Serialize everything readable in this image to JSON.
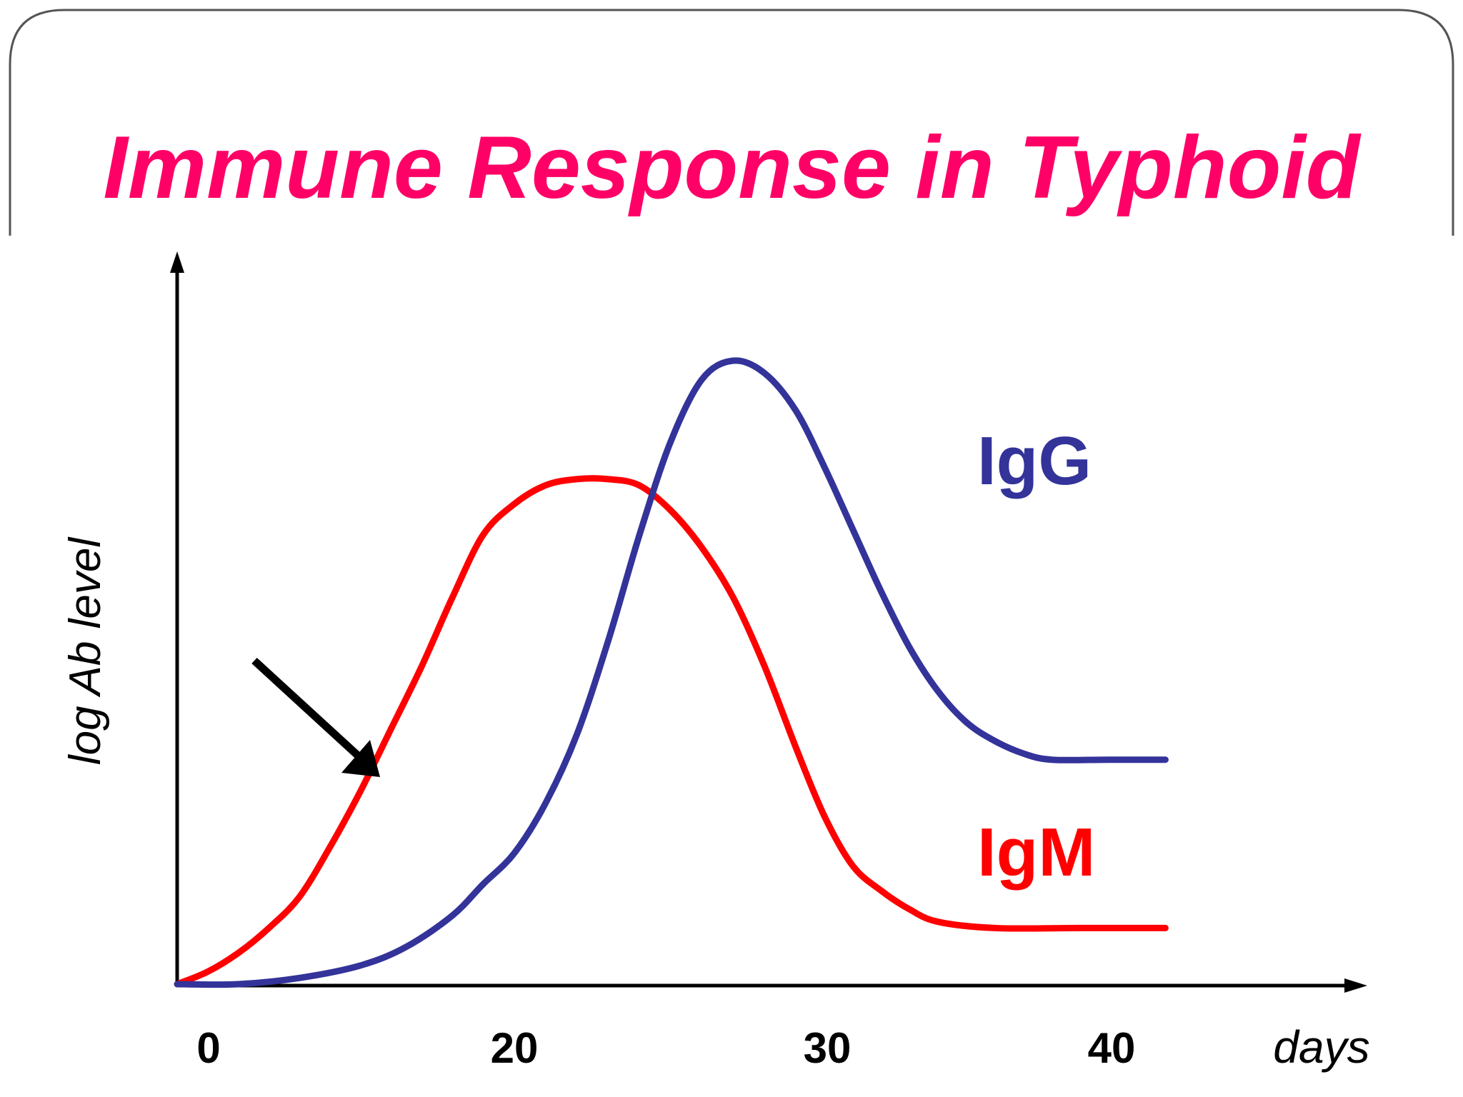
{
  "slide": {
    "title": "Immune Response in Typhoid"
  },
  "colors": {
    "title": "#ff0066",
    "igm": "#ff0000",
    "igg": "#33339a",
    "axis": "#000000"
  },
  "chart_data": {
    "type": "line",
    "title": "",
    "xlabel": "days",
    "ylabel": "log Ab level",
    "x_tick_labels": [
      "0",
      "20",
      "30",
      "40"
    ],
    "grid": false,
    "legend": "inline labels",
    "annotation": "arrow pointing to early IgM rise",
    "series": [
      {
        "name": "IgM",
        "color": "#ff0000",
        "points": [
          [
            0,
            0.0
          ],
          [
            2,
            0.02
          ],
          [
            4,
            0.05
          ],
          [
            6,
            0.09
          ],
          [
            8,
            0.14
          ],
          [
            10,
            0.22
          ],
          [
            12,
            0.31
          ],
          [
            14,
            0.41
          ],
          [
            16,
            0.51
          ],
          [
            18,
            0.62
          ],
          [
            20,
            0.72
          ],
          [
            21,
            0.77
          ],
          [
            22,
            0.8
          ],
          [
            23,
            0.81
          ],
          [
            24,
            0.81
          ],
          [
            25,
            0.8
          ],
          [
            26,
            0.76
          ],
          [
            27,
            0.7
          ],
          [
            28,
            0.62
          ],
          [
            29,
            0.51
          ],
          [
            30,
            0.38
          ],
          [
            31,
            0.27
          ],
          [
            32,
            0.19
          ],
          [
            33,
            0.15
          ],
          [
            34,
            0.12
          ],
          [
            35,
            0.1
          ],
          [
            37,
            0.09
          ],
          [
            40,
            0.09
          ],
          [
            43,
            0.09
          ]
        ]
      },
      {
        "name": "IgG",
        "color": "#33339a",
        "points": [
          [
            0,
            0.0
          ],
          [
            4,
            0.0
          ],
          [
            8,
            0.01
          ],
          [
            12,
            0.03
          ],
          [
            15,
            0.06
          ],
          [
            18,
            0.11
          ],
          [
            20,
            0.16
          ],
          [
            21,
            0.21
          ],
          [
            22,
            0.29
          ],
          [
            23,
            0.4
          ],
          [
            24,
            0.55
          ],
          [
            25,
            0.72
          ],
          [
            26,
            0.87
          ],
          [
            27,
            0.97
          ],
          [
            28,
            1.0
          ],
          [
            29,
            0.98
          ],
          [
            30,
            0.92
          ],
          [
            31,
            0.83
          ],
          [
            32,
            0.73
          ],
          [
            33,
            0.63
          ],
          [
            34,
            0.54
          ],
          [
            35,
            0.47
          ],
          [
            36,
            0.42
          ],
          [
            37,
            0.39
          ],
          [
            38,
            0.37
          ],
          [
            39,
            0.36
          ],
          [
            41,
            0.36
          ],
          [
            43,
            0.36
          ]
        ]
      }
    ]
  }
}
